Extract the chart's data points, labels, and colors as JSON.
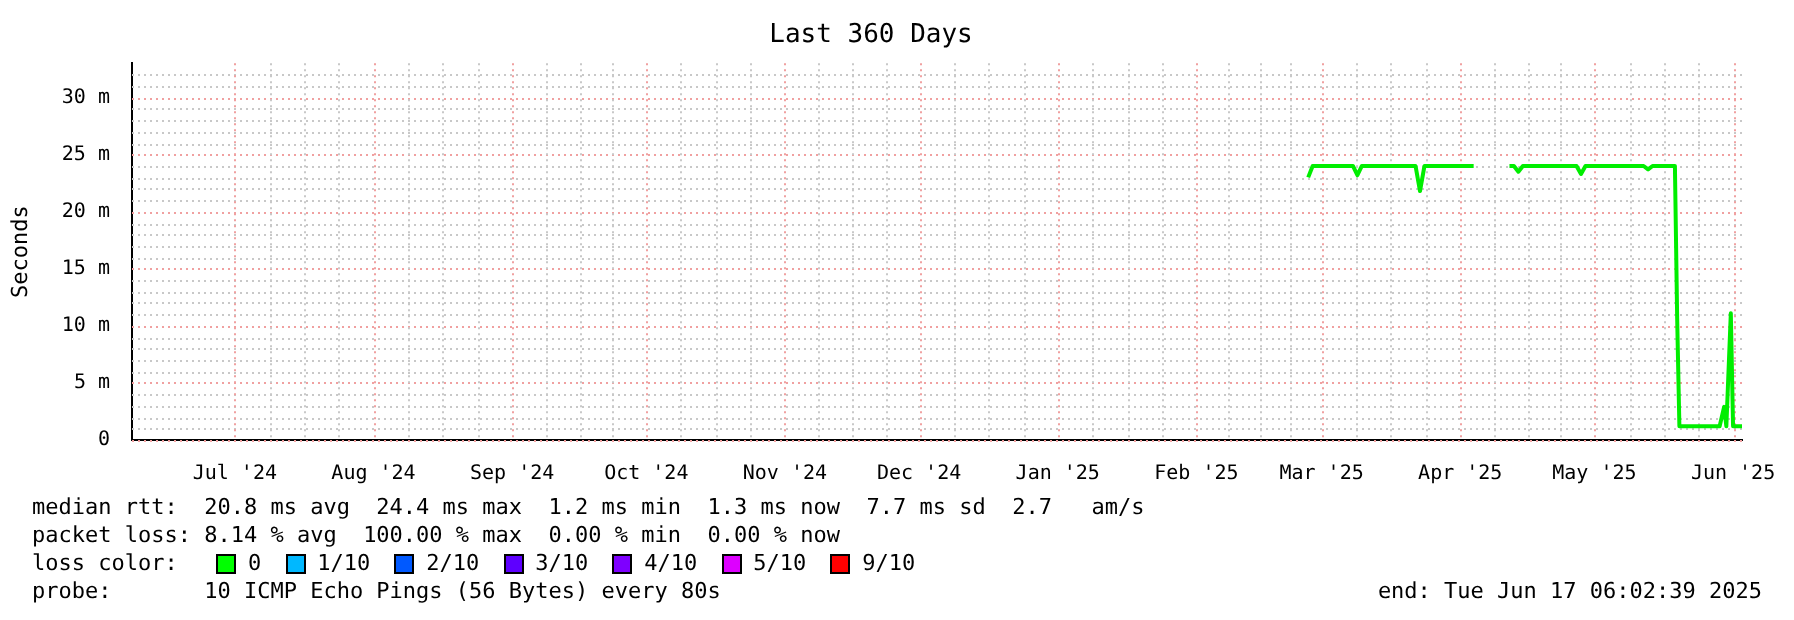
{
  "chart_data": {
    "type": "line",
    "title": "Last 360 Days",
    "ylabel": "Seconds",
    "xlim": [
      "2024-06-22",
      "2025-06-17"
    ],
    "xticks": [
      {
        "value": "2024-07-15",
        "label": "Jul '24"
      },
      {
        "value": "2024-08-15",
        "label": "Aug '24"
      },
      {
        "value": "2024-09-15",
        "label": "Sep '24"
      },
      {
        "value": "2024-10-15",
        "label": "Oct '24"
      },
      {
        "value": "2024-11-15",
        "label": "Nov '24"
      },
      {
        "value": "2024-12-15",
        "label": "Dec '24"
      },
      {
        "value": "2025-01-15",
        "label": "Jan '25"
      },
      {
        "value": "2025-02-15",
        "label": "Feb '25"
      },
      {
        "value": "2025-03-15",
        "label": "Mar '25"
      },
      {
        "value": "2025-04-15",
        "label": "Apr '25"
      },
      {
        "value": "2025-05-15",
        "label": "May '25"
      },
      {
        "value": "2025-06-15",
        "label": "Jun '25"
      }
    ],
    "ylim": [
      0,
      33
    ],
    "yticks": [
      {
        "value": 0,
        "label": "0"
      },
      {
        "value": 5,
        "label": "5 m"
      },
      {
        "value": 10,
        "label": "10 m"
      },
      {
        "value": 15,
        "label": "15 m"
      },
      {
        "value": 20,
        "label": "20 m"
      },
      {
        "value": 25,
        "label": "25 m"
      },
      {
        "value": 30,
        "label": "30 m"
      }
    ],
    "grid": true,
    "x": [
      "2025-03-12",
      "2025-03-13",
      "2025-03-22",
      "2025-03-23",
      "2025-03-24",
      "2025-04-05",
      "2025-04-06",
      "2025-04-07",
      "2025-04-18",
      "2025-04-19",
      "2025-04-26",
      "2025-04-27",
      "2025-04-28",
      "2025-04-29",
      "2025-05-11",
      "2025-05-12",
      "2025-05-13",
      "2025-05-26",
      "2025-05-27",
      "2025-05-28",
      "2025-06-02",
      "2025-06-02T12:00",
      "2025-06-03",
      "2025-06-12",
      "2025-06-13",
      "2025-06-13T12:00",
      "2025-06-14T12:00",
      "2025-06-15",
      "2025-06-17"
    ],
    "series": [
      {
        "color": "#00ee00",
        "values": [
          23.0,
          24.0,
          24.0,
          23.2,
          24.0,
          24.0,
          21.8,
          24.0,
          24.0,
          null,
          24.0,
          24.0,
          23.5,
          24.0,
          24.0,
          23.3,
          24.0,
          24.0,
          23.7,
          24.0,
          24.0,
          10.7,
          1.2,
          1.2,
          2.9,
          1.2,
          11.1,
          1.2,
          1.2
        ]
      }
    ],
    "annotations": [
      "median rtt:  20.8 ms avg  24.4 ms max  1.2 ms min  1.3 ms now  7.7 ms sd  2.7   am/s",
      "packet loss: 8.14 % avg  100.00 % max  0.00 % min  0.00 % now",
      "loss color:",
      "0",
      "1/10",
      "2/10",
      "3/10",
      "4/10",
      "5/10",
      "9/10",
      "probe:       10 ICMP Echo Pings (56 Bytes) every 80s",
      "end: Tue Jun 17 06:02:39 2025"
    ]
  }
}
